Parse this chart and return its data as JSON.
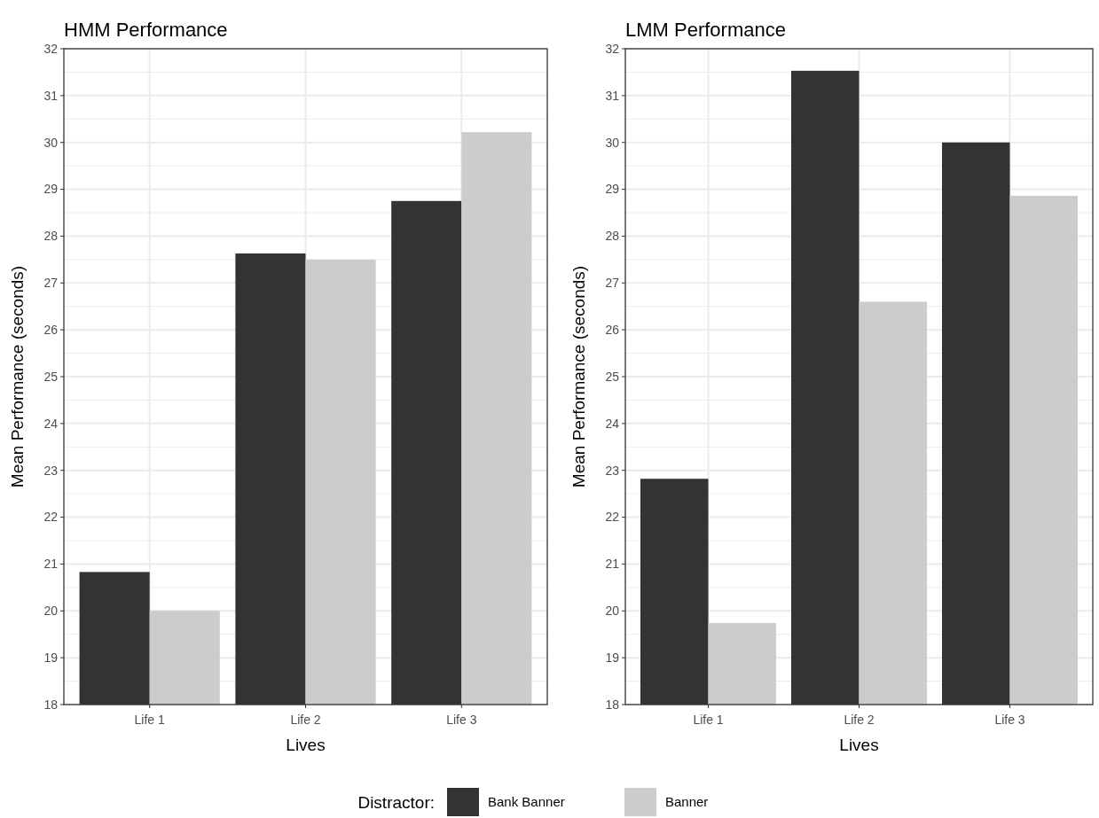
{
  "chart_data": [
    {
      "type": "bar",
      "title": "HMM Performance",
      "xlabel": "Lives",
      "ylabel": "Mean Performance (seconds)",
      "categories": [
        "Life 1",
        "Life 2",
        "Life 3"
      ],
      "series": [
        {
          "name": "Bank Banner",
          "color": "#333333",
          "values": [
            20.83,
            27.63,
            28.75
          ]
        },
        {
          "name": "Banner",
          "color": "#cccccc",
          "values": [
            20.0,
            27.5,
            30.22
          ]
        }
      ],
      "ylim": [
        18,
        32
      ],
      "yticks": [
        18,
        19,
        20,
        21,
        22,
        23,
        24,
        25,
        26,
        27,
        28,
        29,
        30,
        31,
        32
      ],
      "grid": true,
      "legend": "bottom",
      "legend_title": "Distractor:"
    },
    {
      "type": "bar",
      "title": "LMM Performance",
      "xlabel": "Lives",
      "ylabel": "Mean Performance (seconds)",
      "categories": [
        "Life 1",
        "Life 2",
        "Life 3"
      ],
      "series": [
        {
          "name": "Bank Banner",
          "color": "#333333",
          "values": [
            22.82,
            31.53,
            30.0
          ]
        },
        {
          "name": "Banner",
          "color": "#cccccc",
          "values": [
            19.74,
            26.6,
            28.86
          ]
        }
      ],
      "ylim": [
        18,
        32
      ],
      "yticks": [
        18,
        19,
        20,
        21,
        22,
        23,
        24,
        25,
        26,
        27,
        28,
        29,
        30,
        31,
        32
      ],
      "grid": true
    }
  ]
}
